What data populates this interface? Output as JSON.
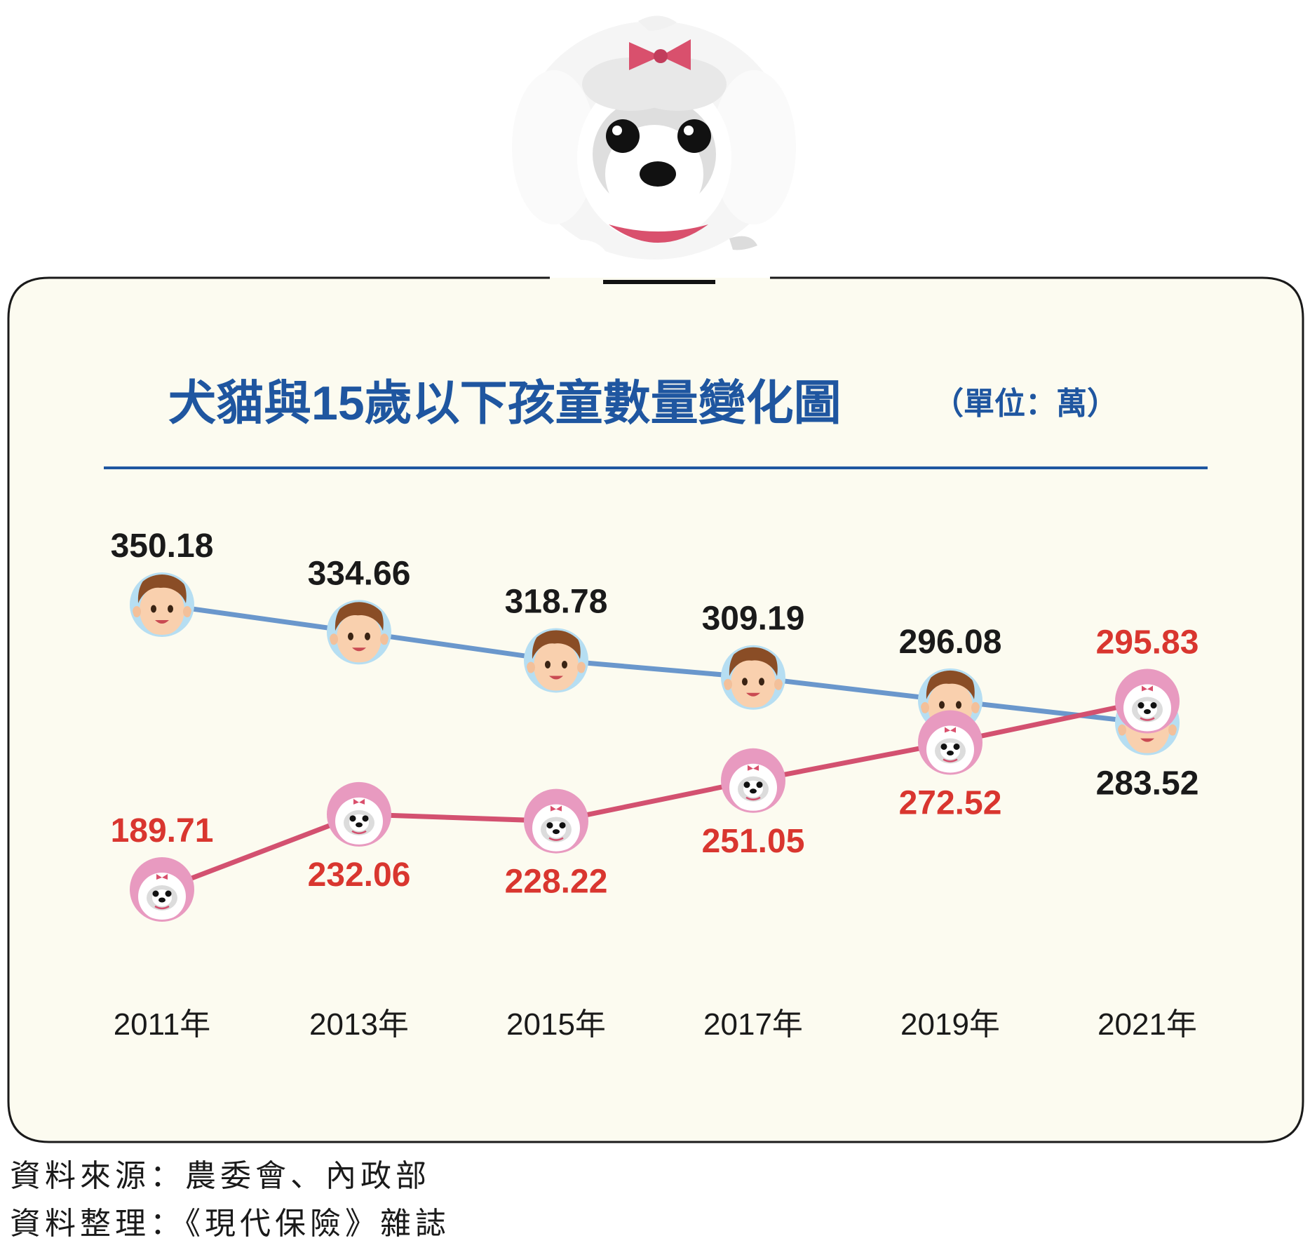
{
  "chart_data": {
    "type": "line",
    "title": "犬貓與15歲以下孩童數量變化圖",
    "unit_note": "（單位：萬）",
    "categories": [
      "2011年",
      "2013年",
      "2015年",
      "2017年",
      "2019年",
      "2021年"
    ],
    "series": [
      {
        "values": [
          350.18,
          334.66,
          318.78,
          309.19,
          296.08,
          283.52
        ],
        "labels": [
          "350.18",
          "334.66",
          "318.78",
          "309.19",
          "296.08",
          "283.52"
        ],
        "line_color": "#6a97cc",
        "label_color": "#1a1a1a",
        "icon": "child-face-icon"
      },
      {
        "values": [
          189.71,
          232.06,
          228.22,
          251.05,
          272.52,
          295.83
        ],
        "labels": [
          "189.71",
          "232.06",
          "228.22",
          "251.05",
          "272.52",
          "295.83"
        ],
        "line_color": "#d35170",
        "label_color": "#d9362f",
        "icon": "dog-face-icon"
      }
    ],
    "colors": {
      "title": "#1f56a0",
      "panel_bg": "#fcfbf0"
    }
  },
  "sources": {
    "line1": "資料來源：農委會、內政部",
    "line2": "資料整理：《現代保險》雜誌"
  }
}
